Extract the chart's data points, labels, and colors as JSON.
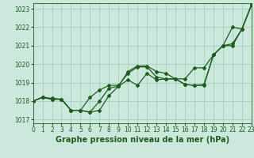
{
  "title": "",
  "xlabel": "Graphe pression niveau de la mer (hPa)",
  "ylabel": "",
  "xlim": [
    0,
    23
  ],
  "ylim": [
    1016.8,
    1023.3
  ],
  "yticks": [
    1017,
    1018,
    1019,
    1020,
    1021,
    1022,
    1023
  ],
  "xticks": [
    0,
    1,
    2,
    3,
    4,
    5,
    6,
    7,
    8,
    9,
    10,
    11,
    12,
    13,
    14,
    15,
    16,
    17,
    18,
    19,
    20,
    21,
    22,
    23
  ],
  "background_color": "#cce8dc",
  "grid_color": "#99ccbb",
  "line_color": "#1e5c1e",
  "lines": [
    [
      1018.0,
      1018.2,
      1018.1,
      1018.1,
      1017.5,
      1017.5,
      1017.4,
      1017.5,
      1018.3,
      1018.8,
      1019.15,
      1018.85,
      1019.5,
      1019.15,
      1019.2,
      1019.2,
      1018.9,
      1018.85,
      1018.9,
      1020.5,
      1021.0,
      1022.0,
      1021.9,
      1023.2
    ],
    [
      1018.0,
      1018.2,
      1018.15,
      1018.1,
      1017.5,
      1017.5,
      1017.4,
      1018.0,
      1018.7,
      1018.8,
      1019.6,
      1019.9,
      1019.9,
      1019.6,
      1019.5,
      1019.2,
      1019.2,
      1019.8,
      1019.8,
      1020.5,
      1021.0,
      1021.0,
      1021.9,
      1023.2
    ],
    [
      1018.0,
      1018.2,
      1018.1,
      1018.1,
      1017.5,
      1017.5,
      1018.2,
      1018.6,
      1018.85,
      1018.85,
      1019.5,
      1019.85,
      1019.85,
      1019.3,
      1019.2,
      1019.2,
      1018.9,
      1018.85,
      1018.85,
      1020.5,
      1021.0,
      1021.1,
      1021.9,
      1023.2
    ]
  ],
  "marker": "D",
  "markersize": 2,
  "linewidth": 0.9,
  "tick_fontsize": 5.5,
  "label_fontsize": 7,
  "tick_color": "#1e5c1e",
  "spine_color": "#1e5c1e"
}
